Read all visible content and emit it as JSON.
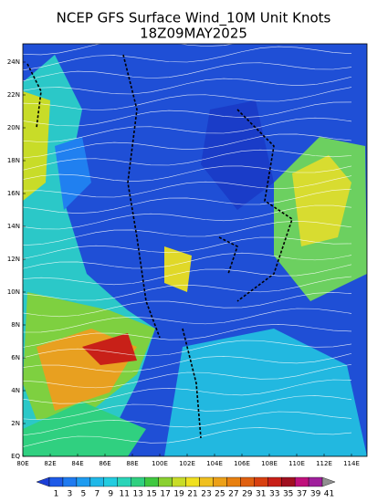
{
  "header": {
    "title": "NCEP GFS Surface Wind_10M Unit Knots",
    "subtitle": "18Z09MAY2025"
  },
  "map": {
    "lat_labels": [
      "EQ",
      "2N",
      "4N",
      "6N",
      "8N",
      "10N",
      "12N",
      "14N",
      "16N",
      "18N",
      "20N",
      "22N",
      "24N"
    ],
    "lon_labels": [
      "80E",
      "82E",
      "84E",
      "86E",
      "88E",
      "100E",
      "102E",
      "104E",
      "106E",
      "108E",
      "110E",
      "112E",
      "114E"
    ]
  },
  "colorbar": {
    "labels": [
      1,
      3,
      5,
      7,
      9,
      11,
      13,
      15,
      17,
      19,
      21,
      23,
      25,
      27,
      29,
      31,
      33,
      35,
      37,
      39,
      41
    ],
    "colors": [
      "#1c3fd6",
      "#1e5ae8",
      "#1f7af0",
      "#1e9bf0",
      "#20b8e8",
      "#22cce0",
      "#2bd4b8",
      "#30d080",
      "#40c840",
      "#8ad030",
      "#c8dc28",
      "#f0e020",
      "#f0c020",
      "#eca018",
      "#e88010",
      "#e06010",
      "#d84010",
      "#c82018",
      "#a01020",
      "#c0107c",
      "#a0209c",
      "#909090"
    ]
  }
}
